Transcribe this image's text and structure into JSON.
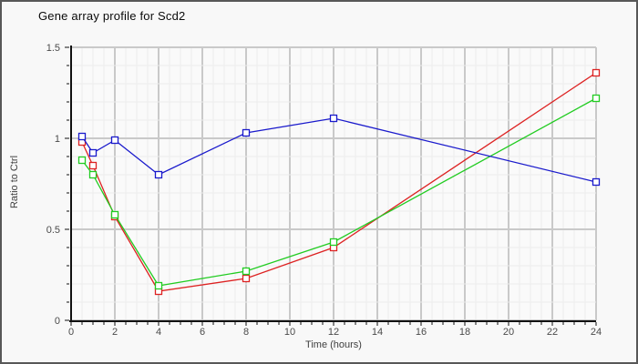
{
  "window": {
    "background": "#f8f8f8",
    "border_color": "#585858",
    "plot_background": "#fafafa"
  },
  "header": {
    "title": "Gene array profile for Scd2"
  },
  "chart_data": {
    "type": "line",
    "title": "Gene array profile for Scd2",
    "xlabel": "Time (hours)",
    "ylabel": "Ratio to Ctrl",
    "xlim": [
      0,
      24
    ],
    "ylim": [
      0,
      1.5
    ],
    "xticks_labeled": [
      0,
      2,
      4,
      6,
      8,
      10,
      12,
      14,
      16,
      18,
      20,
      22,
      24
    ],
    "yticks_labeled": [
      0,
      0.5,
      1,
      1.5
    ],
    "ytick_labels": [
      "0",
      "0.5",
      "1",
      "1.5"
    ],
    "minor_x_step": 0.5,
    "minor_y_step": 0.1,
    "grid": true,
    "legend": "none",
    "marker": "open-square",
    "x": [
      0.5,
      1,
      2,
      4,
      8,
      12,
      24
    ],
    "series": [
      {
        "name": "red-series",
        "color": "#dd2222",
        "values": [
          0.98,
          0.85,
          0.57,
          0.16,
          0.23,
          0.4,
          1.36
        ]
      },
      {
        "name": "green-series",
        "color": "#22cc22",
        "values": [
          0.88,
          0.8,
          0.58,
          0.19,
          0.27,
          0.43,
          1.22
        ]
      },
      {
        "name": "blue-series",
        "color": "#1a1acc",
        "values": [
          1.01,
          0.92,
          0.99,
          0.8,
          1.03,
          1.11,
          0.76
        ]
      }
    ],
    "grid_colors": {
      "minor": "#ececec",
      "major": "#c9c9c9"
    },
    "axis_color": "#111111",
    "tick_label_color": "#4a4a4a"
  }
}
